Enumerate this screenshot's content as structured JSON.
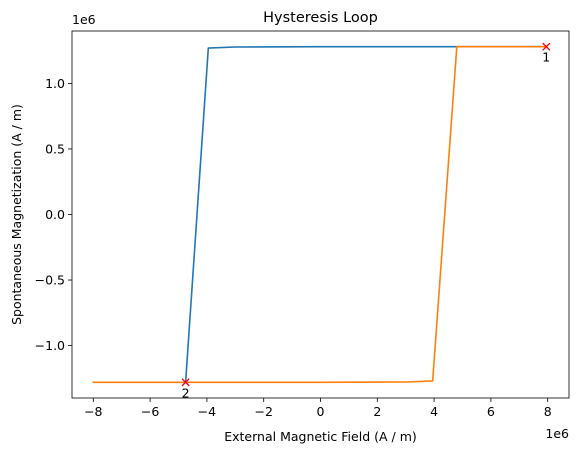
{
  "chart_data": {
    "type": "line",
    "title": "Hysteresis Loop",
    "xlabel": "External Magnetic Field (A / m)",
    "ylabel": "Spontaneous Magnetization (A / m)",
    "x_offset_label": "1e6",
    "y_offset_label": "1e6",
    "xlim": [
      -8.75,
      8.75
    ],
    "ylim": [
      -1.4,
      1.4
    ],
    "xticks": [
      -8,
      -6,
      -4,
      -2,
      0,
      2,
      4,
      6,
      8
    ],
    "xtick_labels": [
      "−8",
      "−6",
      "−4",
      "−2",
      "0",
      "2",
      "4",
      "6",
      "8"
    ],
    "yticks": [
      -1.0,
      -0.5,
      0.0,
      0.5,
      1.0
    ],
    "ytick_labels": [
      "−1.0",
      "−0.5",
      "0.0",
      "0.5",
      "1.0"
    ],
    "grid": false,
    "series": [
      {
        "color": "#1f77b4",
        "x": [
          7.95,
          4.8,
          3,
          0,
          -3,
          -3.95,
          -4.75
        ],
        "y": [
          1.28,
          1.28,
          1.28,
          1.28,
          1.278,
          1.27,
          -1.28
        ]
      },
      {
        "color": "#ff7f0e",
        "x": [
          -8,
          -4.75,
          0,
          3,
          3.95,
          4.8,
          7.95
        ],
        "y": [
          -1.28,
          -1.28,
          -1.28,
          -1.278,
          -1.27,
          1.28,
          1.28
        ]
      }
    ],
    "markers": [
      {
        "x": 7.95,
        "y": 1.28,
        "label": "1",
        "color": "#ff0000",
        "symbol": "x"
      },
      {
        "x": -4.75,
        "y": -1.28,
        "label": "2",
        "color": "#ff0000",
        "symbol": "x"
      }
    ]
  }
}
